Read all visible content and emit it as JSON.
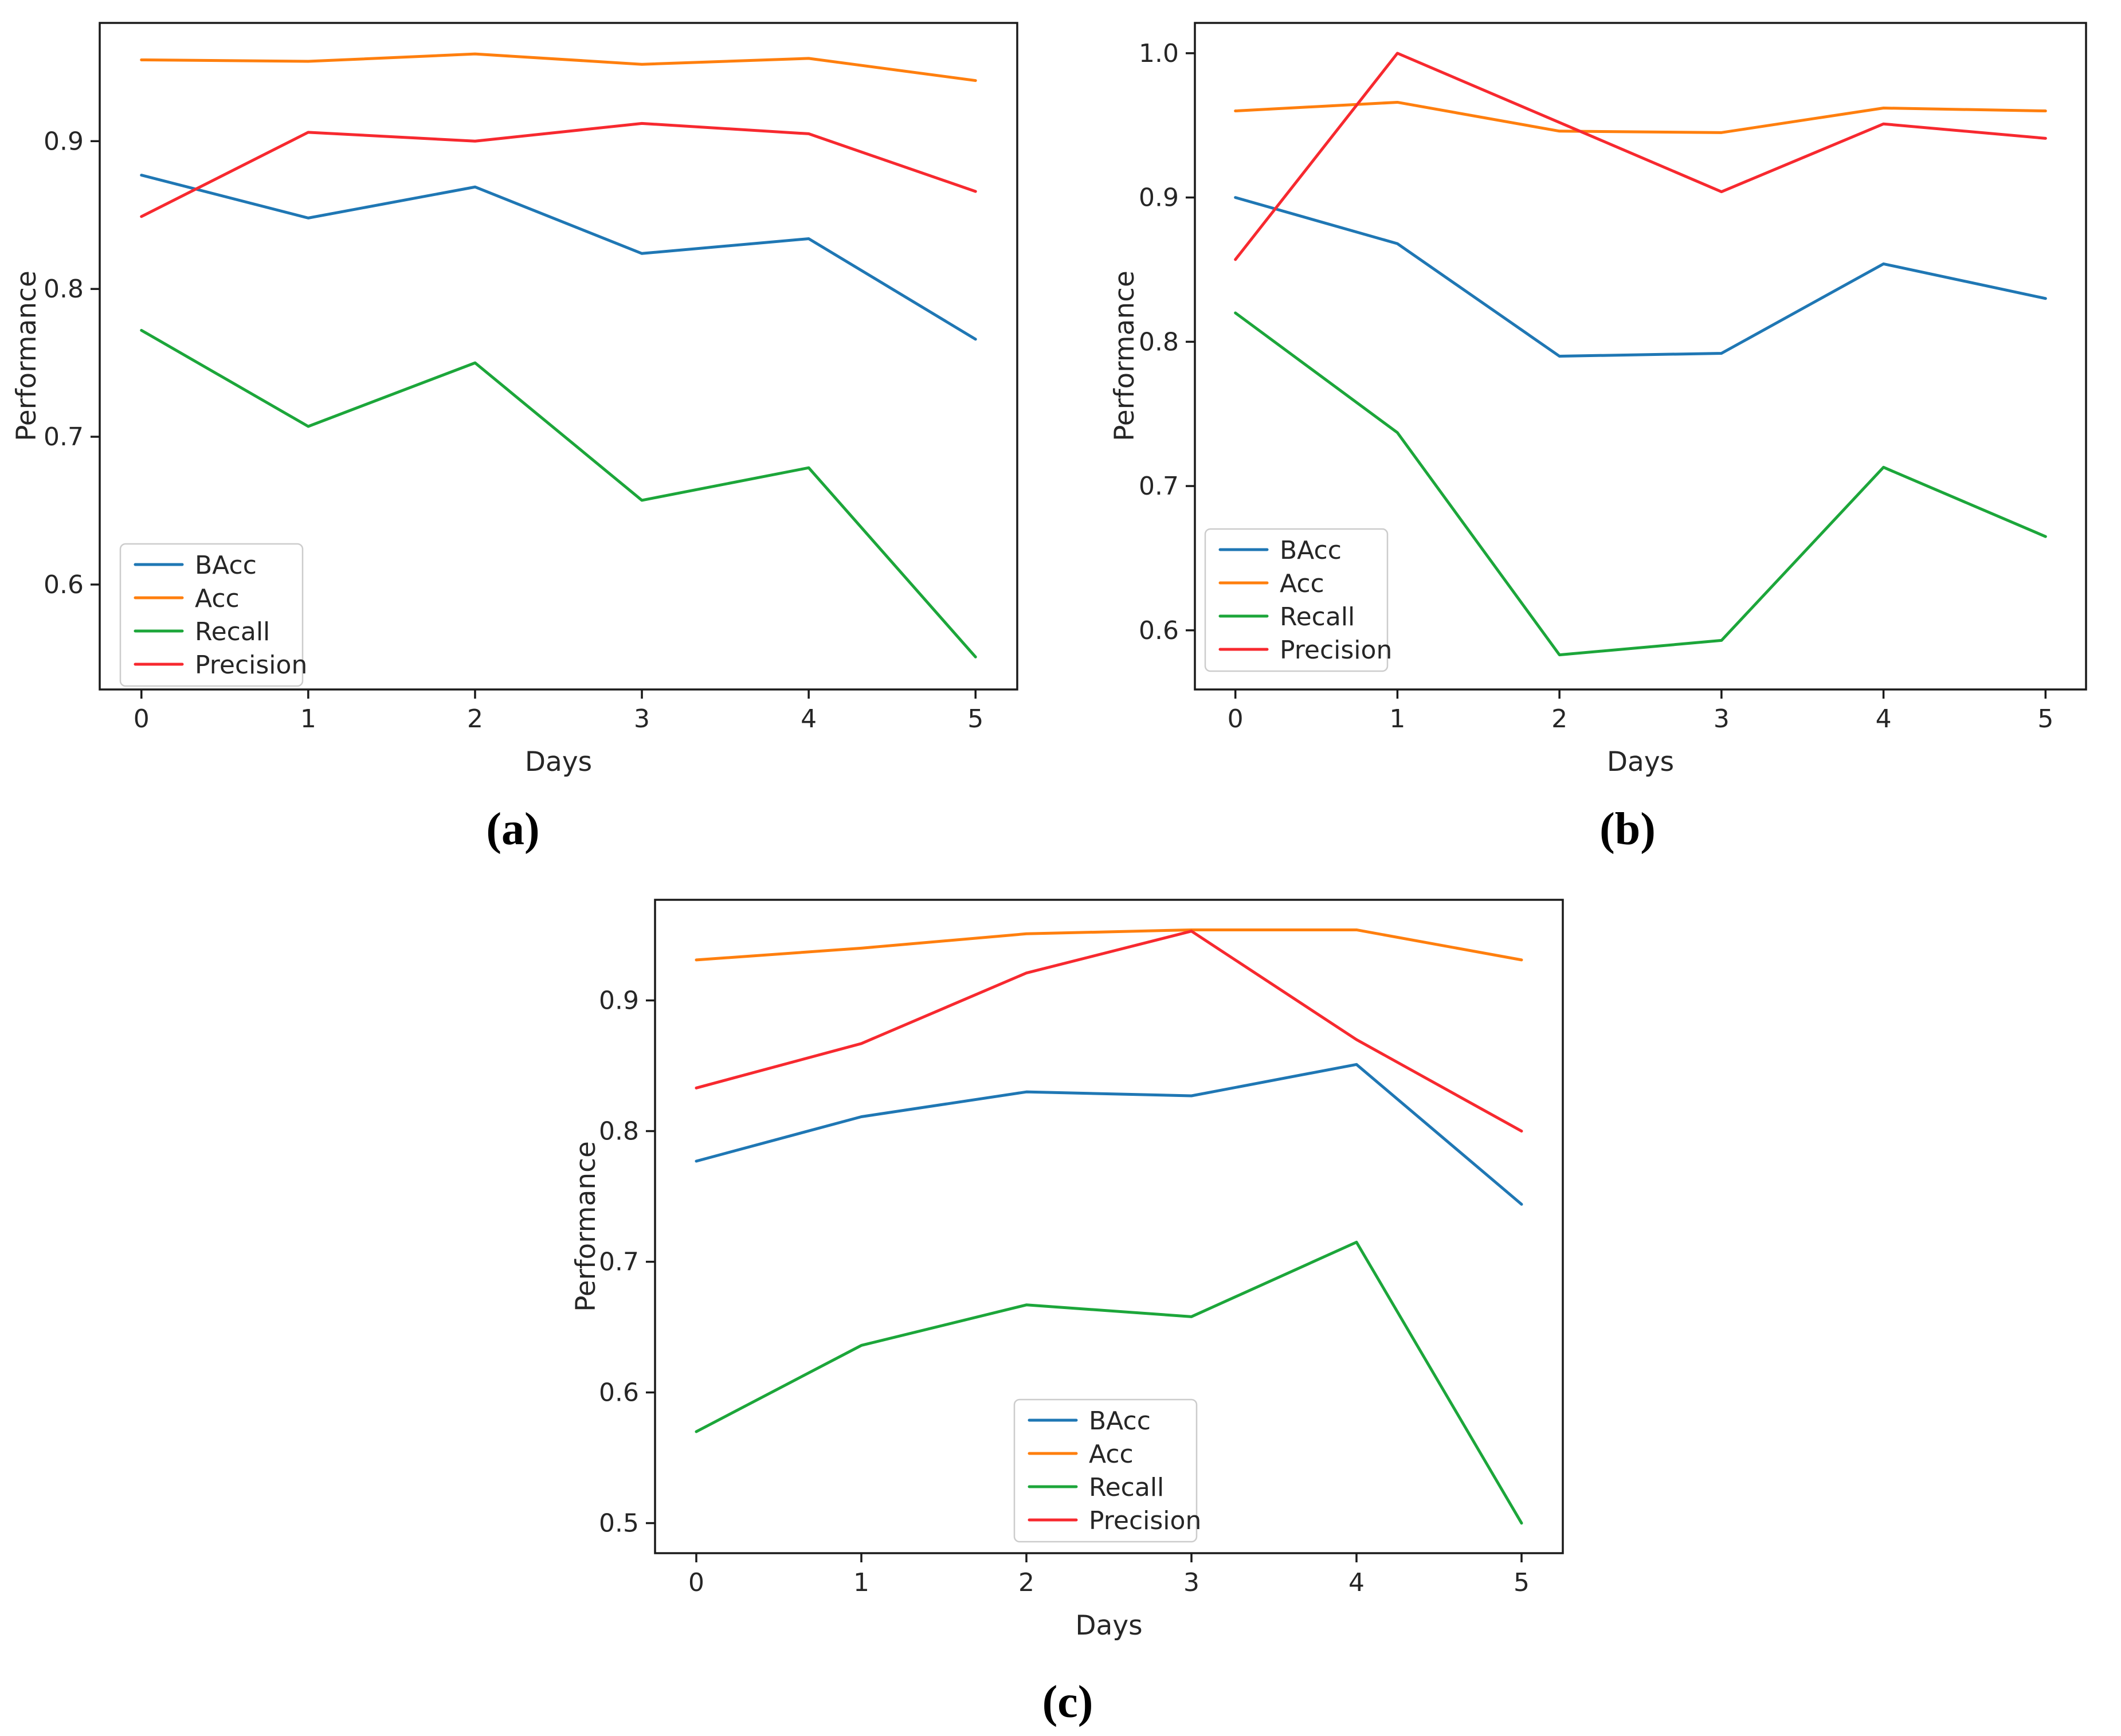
{
  "figure": {
    "captions": {
      "a": "(a)",
      "b": "(b)",
      "c": "(c)"
    }
  },
  "colors": {
    "BAcc": "#1f77b4",
    "Acc": "#ff7f0e",
    "Recall": "#1ca63a",
    "Precision": "#f7292f",
    "axis": "#1a1a1a",
    "text": "#262626",
    "legend_border": "#cccccc",
    "legend_fill": "#ffffff"
  },
  "chart_data": [
    {
      "id": "a",
      "type": "line",
      "title": "",
      "xlabel": "Days",
      "ylabel": "Performance",
      "x": [
        0,
        1,
        2,
        3,
        4,
        5
      ],
      "xtick_labels": [
        "0",
        "1",
        "2",
        "3",
        "4",
        "5"
      ],
      "xlim": [
        -0.25,
        5.25
      ],
      "ylim": [
        0.529,
        0.98
      ],
      "yticks": [
        0.6,
        0.7,
        0.8,
        0.9
      ],
      "ytick_labels": [
        "0.6",
        "0.7",
        "0.8",
        "0.9"
      ],
      "grid": false,
      "legend_position": "lower-left",
      "series": [
        {
          "name": "BAcc",
          "values": [
            0.877,
            0.848,
            0.869,
            0.824,
            0.834,
            0.766
          ]
        },
        {
          "name": "Acc",
          "values": [
            0.955,
            0.954,
            0.959,
            0.952,
            0.956,
            0.941
          ]
        },
        {
          "name": "Recall",
          "values": [
            0.772,
            0.707,
            0.75,
            0.657,
            0.679,
            0.551
          ]
        },
        {
          "name": "Precision",
          "values": [
            0.849,
            0.906,
            0.9,
            0.912,
            0.905,
            0.866
          ]
        }
      ]
    },
    {
      "id": "b",
      "type": "line",
      "title": "",
      "xlabel": "Days",
      "ylabel": "Performance",
      "x": [
        0,
        1,
        2,
        3,
        4,
        5
      ],
      "xtick_labels": [
        "0",
        "1",
        "2",
        "3",
        "4",
        "5"
      ],
      "xlim": [
        -0.25,
        5.25
      ],
      "ylim": [
        0.559,
        1.021
      ],
      "yticks": [
        0.6,
        0.7,
        0.8,
        0.9,
        1.0
      ],
      "ytick_labels": [
        "0.6",
        "0.7",
        "0.8",
        "0.9",
        "1.0"
      ],
      "grid": false,
      "legend_position": "lower-left",
      "series": [
        {
          "name": "BAcc",
          "values": [
            0.9,
            0.868,
            0.79,
            0.792,
            0.854,
            0.83
          ]
        },
        {
          "name": "Acc",
          "values": [
            0.96,
            0.966,
            0.946,
            0.945,
            0.962,
            0.96
          ]
        },
        {
          "name": "Recall",
          "values": [
            0.82,
            0.737,
            0.583,
            0.593,
            0.713,
            0.665
          ]
        },
        {
          "name": "Precision",
          "values": [
            0.857,
            1.0,
            0.952,
            0.904,
            0.951,
            0.941
          ]
        }
      ]
    },
    {
      "id": "c",
      "type": "line",
      "title": "",
      "xlabel": "Days",
      "ylabel": "Performance",
      "x": [
        0,
        1,
        2,
        3,
        4,
        5
      ],
      "xtick_labels": [
        "0",
        "1",
        "2",
        "3",
        "4",
        "5"
      ],
      "xlim": [
        -0.25,
        5.25
      ],
      "ylim": [
        0.477,
        0.977
      ],
      "yticks": [
        0.5,
        0.6,
        0.7,
        0.8,
        0.9
      ],
      "ytick_labels": [
        "0.5",
        "0.6",
        "0.7",
        "0.8",
        "0.9"
      ],
      "grid": false,
      "legend_position": "lower-center",
      "series": [
        {
          "name": "BAcc",
          "values": [
            0.777,
            0.811,
            0.83,
            0.827,
            0.851,
            0.744
          ]
        },
        {
          "name": "Acc",
          "values": [
            0.931,
            0.94,
            0.951,
            0.954,
            0.954,
            0.931
          ]
        },
        {
          "name": "Recall",
          "values": [
            0.57,
            0.636,
            0.667,
            0.658,
            0.715,
            0.5
          ]
        },
        {
          "name": "Precision",
          "values": [
            0.833,
            0.867,
            0.921,
            0.953,
            0.87,
            0.8
          ]
        }
      ]
    }
  ]
}
